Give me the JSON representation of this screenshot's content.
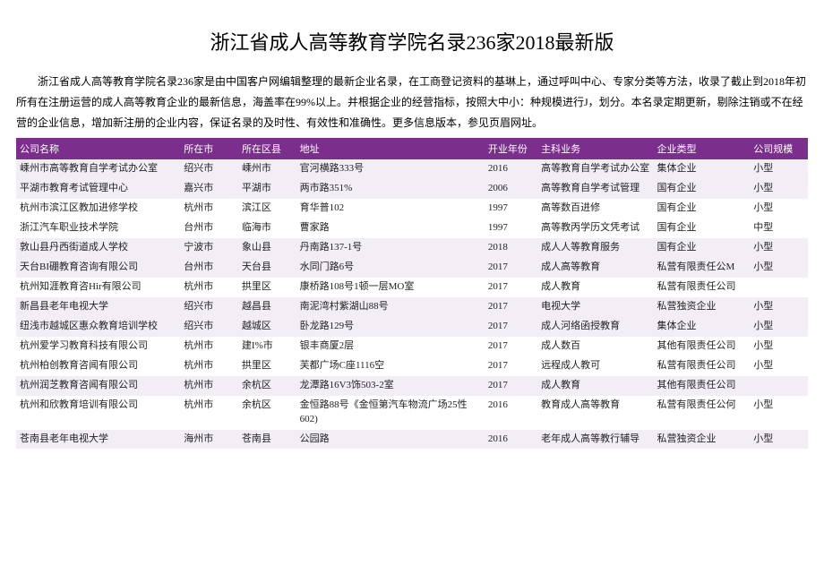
{
  "title": "浙江省成人高等教育学院名录236家2018最新版",
  "intro": "浙江省成人高等教育学院名录236家是由中国客户网编辑整理的最新企业名录，在工商登记资料的基琳上，通过呼叫中心、专家分类等方法，收录了截止到2018年初所有在注册运营的成人高等教育企业的最新信息，海盖率在99%以上。并根据企业的经营指标，按照大中小：种规模进行J，划分。本名录定期更新，剔除注销或不在经营的企业信息，增加新注册的企业内容，保证名录的及时性、有效性和准确性。更多信息版本，参见页眉网址。",
  "columns": [
    "公司名称",
    "所在市",
    "所在区县",
    "地址",
    "开业年份",
    "主科业务",
    "企业类型",
    "公司规模"
  ],
  "header_bg": "#7b2e8c",
  "header_fg": "#ffffff",
  "row_odd_bg": "#f3eef6",
  "row_even_bg": "#ffffff",
  "rows": [
    {
      "band": "odd",
      "name": "嵊州市高等教育自学考试办公室",
      "city": "绍兴市",
      "county": "嵊州市",
      "addr": "官河横路333号",
      "year": "2016",
      "biz": "高等教育自学考试办公室",
      "type": "集体企业",
      "size": "小型"
    },
    {
      "band": "odd",
      "name": "平湖市教育考试管理中心",
      "city": "嘉兴市",
      "county": "平湖市",
      "addr": "两市路351%",
      "year": "2006",
      "biz": "高等教育自学考试管理",
      "type": "国有企业",
      "size": "小型"
    },
    {
      "band": "even",
      "name": "杭州市滨江区教加进修学校",
      "city": "杭州市",
      "county": "滨江区",
      "addr": "育华普102",
      "year": "1997",
      "biz": "高等数百进修",
      "type": "国有企业",
      "size": "小型"
    },
    {
      "band": "even",
      "name": "浙江汽车职业技术学院",
      "city": "台州市",
      "county": "临海市",
      "addr": "曹家路",
      "year": "1997",
      "biz": "高等教丙学历文凭考试",
      "type": "国有企业",
      "size": "中型"
    },
    {
      "band": "odd",
      "name": "敦山县丹西街道成人学校",
      "city": "宁波市",
      "county": "象山县",
      "addr": "丹南路137-1号",
      "year": "2018",
      "biz": "成人人等教育服务",
      "type": "国有企业",
      "size": "小型"
    },
    {
      "band": "odd",
      "name": "天台BI硼教育咨询有限公司",
      "city": "台州市",
      "county": "天台县",
      "addr": "水同门路6号",
      "year": "2017",
      "biz": "成人高等教育",
      "type": "私营有限责任公M",
      "size": "小型"
    },
    {
      "band": "even",
      "name": "杭州知涯教育咨Hir有限公司",
      "city": "杭州市",
      "county": "拱里区",
      "addr": "康桥路108号1顿一层MO室",
      "year": "2017",
      "biz": "成人教育",
      "type": "私营有限责任公司",
      "size": ""
    },
    {
      "band": "odd",
      "name": "新昌县老年电视大学",
      "city": "绍兴市",
      "county": "越昌县",
      "addr": "南泥湾村紫湖山88号",
      "year": "2017",
      "biz": "电视大学",
      "type": "私营独资企业",
      "size": "小型"
    },
    {
      "band": "odd",
      "name": "纽浅市越城区惠众教育培训学校",
      "city": "绍兴市",
      "county": "越城区",
      "addr": "卧龙路129号",
      "year": "2017",
      "biz": "成人河络函授教育",
      "type": "集体企业",
      "size": "小型"
    },
    {
      "band": "even",
      "name": "杭州爱学习教育科技有限公司",
      "city": "杭州市",
      "county": "建I%市",
      "addr": "银丰商厦2层",
      "year": "2017",
      "biz": "成人数百",
      "type": "其他有限责任公司",
      "size": "小型"
    },
    {
      "band": "even",
      "name": "杭州柏创教育咨闻有限公司",
      "city": "杭州市",
      "county": "拱里区",
      "addr": "芙都广场C座1116空",
      "year": "2017",
      "biz": "远程成人教可",
      "type": "私营有限责任公司",
      "size": "小型"
    },
    {
      "band": "odd",
      "name": "杭州润芝教育咨闻有限公司",
      "city": "杭州市",
      "county": "余杭区",
      "addr": "龙潭路16V3饰503-2室",
      "year": "2017",
      "biz": "成人教育",
      "type": "其他有限责任公司",
      "size": ""
    },
    {
      "band": "even",
      "name": "杭州和欣教育培训有限公司",
      "city": "杭州市",
      "county": "余杭区",
      "addr": "金恒路88号《金恒第汽车物流广场25性602)",
      "year": "2016",
      "biz": "教育成人高等教育",
      "type": "私营有限责任公何",
      "size": "小型"
    },
    {
      "band": "odd",
      "name": "苍南县老年电视大学",
      "city": "海州市",
      "county": "苍南县",
      "addr": "公园路",
      "year": "2016",
      "biz": "老年成人高等教行辅导",
      "type": "私营独资企业",
      "size": "小型"
    }
  ]
}
